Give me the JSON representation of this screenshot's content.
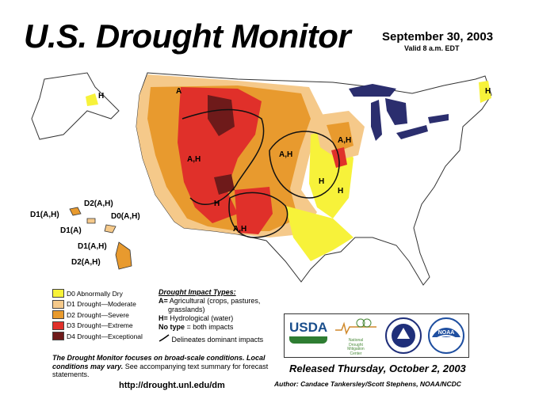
{
  "header": {
    "title": "U.S. Drought Monitor",
    "date": "September 30, 2003",
    "valid": "Valid 8 a.m. EDT"
  },
  "colors": {
    "D0": "#f7f23a",
    "D1": "#f5c98a",
    "D2": "#e89a2e",
    "D3": "#e0302a",
    "D4": "#6e1a1a",
    "water": "#2b2e6e",
    "boundary": "#333333"
  },
  "legend": {
    "items": [
      {
        "label": "D0 Abnormally Dry",
        "color": "#f7f23a"
      },
      {
        "label": "D1 Drought—Moderate",
        "color": "#f5c98a"
      },
      {
        "label": "D2 Drought—Severe",
        "color": "#e89a2e"
      },
      {
        "label": "D3 Drought—Extreme",
        "color": "#e0302a"
      },
      {
        "label": "D4 Drought—Exceptional",
        "color": "#6e1a1a"
      }
    ]
  },
  "impacts": {
    "heading": "Drought Impact Types:",
    "a_key": "A=",
    "a_text": "Agricultural (crops, pastures,",
    "a_text2": "grasslands)",
    "h_key": "H=",
    "h_text": "Hydrological (water)",
    "no_key": "No type",
    "no_text": "= both impacts",
    "line_text": "Delineates dominant impacts"
  },
  "map_labels": {
    "alaska": "H",
    "northeast": "H",
    "northwest": "A",
    "idaho": "A,H",
    "sd": "A,H",
    "mn": "A,H",
    "mo1": "H",
    "mo2": "H",
    "az": "H",
    "nm": "A,H",
    "hi1": "D2(A,H)",
    "hi2": "D1(A,H)",
    "hi3": "D0(A,H)",
    "hi4": "D1(A)",
    "hi5": "D1(A,H)",
    "hi6": "D2(A,H)"
  },
  "footer": {
    "note_bold": "The Drought Monitor focuses on broad-scale conditions. Local conditions may vary.",
    "note_rest": "See accompanying text summary for forecast statements.",
    "url": "http://drought.unl.edu/dm",
    "released": "Released Thursday, October 2, 2003",
    "author_label": "Author:",
    "author": "Candace Tankersley/Scott Stephens, NOAA/NCDC"
  },
  "logos": {
    "usda": "USDA",
    "ndmc_line1": "National",
    "ndmc_line2": "Drought",
    "ndmc_line3": "Mitigation",
    "ndmc_line4": "Center",
    "noaa": "NOAA"
  }
}
